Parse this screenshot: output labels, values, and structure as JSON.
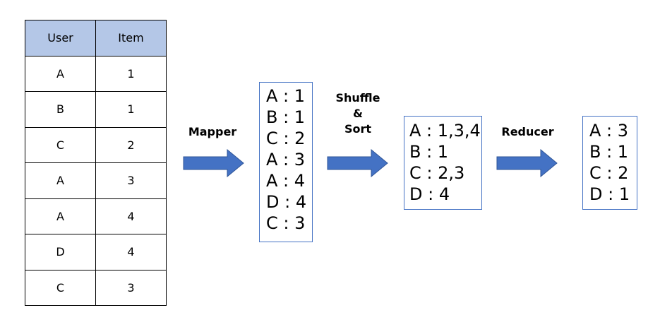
{
  "table": {
    "headers": [
      "User",
      "Item"
    ],
    "rows": [
      [
        "A",
        "1"
      ],
      [
        "B",
        "1"
      ],
      [
        "C",
        "2"
      ],
      [
        "A",
        "3"
      ],
      [
        "A",
        "4"
      ],
      [
        "D",
        "4"
      ],
      [
        "C",
        "3"
      ]
    ]
  },
  "mapper": {
    "label": "Mapper",
    "lines": [
      "A : 1",
      "B : 1",
      "C : 2",
      "A : 3",
      "A : 4",
      "D : 4",
      "C : 3"
    ]
  },
  "shuffle": {
    "label_lines": [
      "Shuffle",
      "&",
      "Sort"
    ],
    "lines": [
      "A : 1,3,4",
      "B : 1",
      "C : 2,3",
      "D : 4"
    ]
  },
  "reducer": {
    "label": "Reducer",
    "lines": [
      "A : 3",
      "B : 1",
      "C : 2",
      "D : 1"
    ]
  },
  "colors": {
    "header_fill": "#b4c7e7",
    "box_border": "#4472c4",
    "arrow_fill": "#4472c4"
  }
}
